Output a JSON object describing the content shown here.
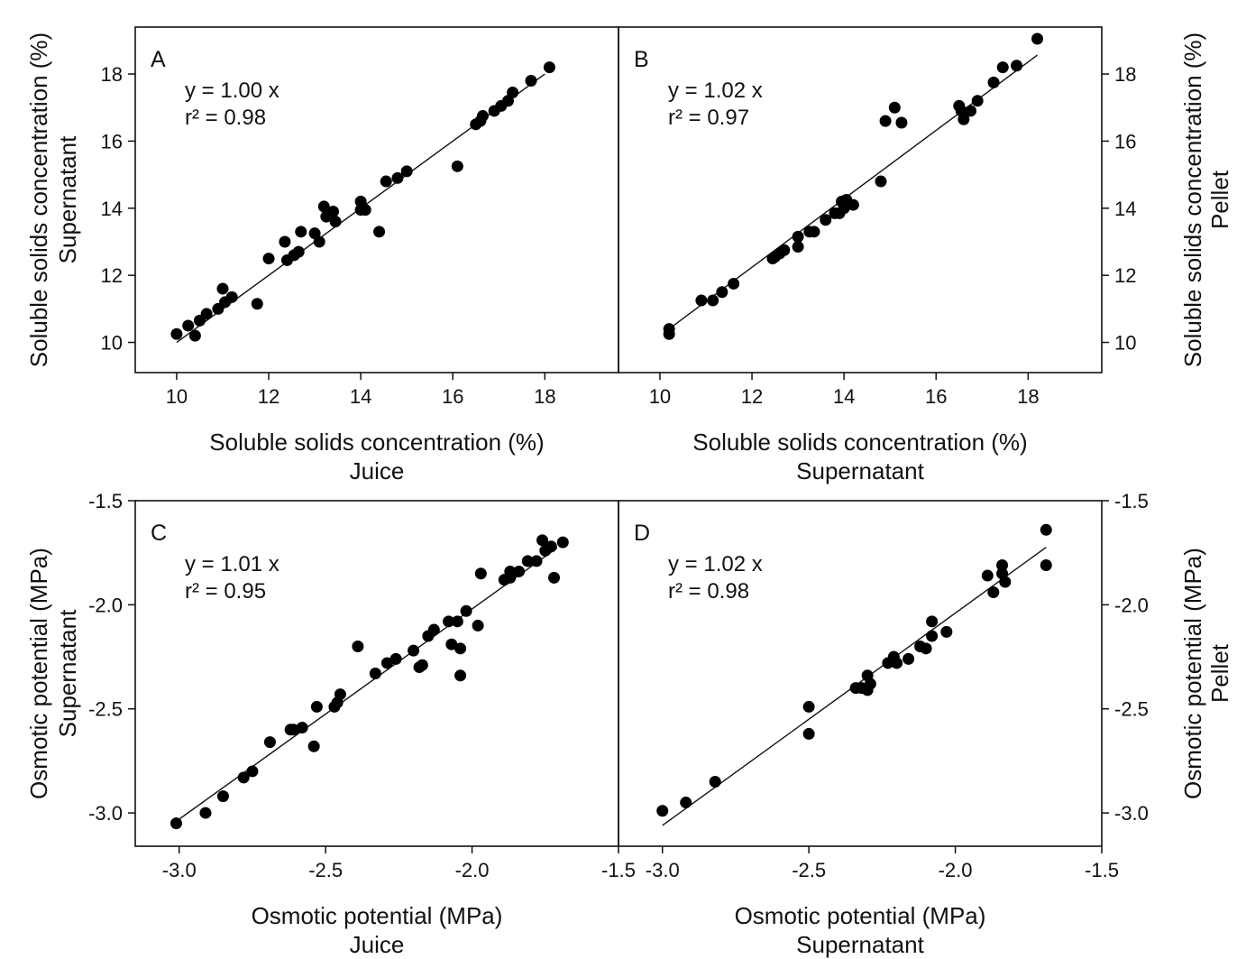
{
  "chart_data": [
    {
      "panel": "A",
      "type": "scatter",
      "letter": "A",
      "equation": "y = 1.00 x",
      "r2": "r² = 0.98",
      "xlabel": [
        "Soluble solids concentration (%)",
        "Juice"
      ],
      "ylabel": [
        "Soluble solids concentration (%)",
        "Supernatant"
      ],
      "xlim": [
        9.1,
        19.6
      ],
      "ylim": [
        9.1,
        19.4
      ],
      "xticks": [
        10,
        12,
        14,
        16,
        18
      ],
      "yticks": [
        10,
        12,
        14,
        16,
        18
      ],
      "tick_labels_x": [
        "10",
        "12",
        "14",
        "16",
        "18"
      ],
      "tick_labels_y": [
        "10",
        "12",
        "14",
        "16",
        "18"
      ],
      "fit": {
        "slope": 1.0,
        "x_range": [
          10.0,
          18.0
        ]
      },
      "points": [
        [
          10.0,
          10.25
        ],
        [
          10.25,
          10.5
        ],
        [
          10.4,
          10.2
        ],
        [
          10.5,
          10.65
        ],
        [
          10.65,
          10.85
        ],
        [
          10.9,
          11.0
        ],
        [
          11.0,
          11.6
        ],
        [
          11.05,
          11.2
        ],
        [
          11.2,
          11.35
        ],
        [
          11.75,
          11.15
        ],
        [
          12.0,
          12.5
        ],
        [
          12.35,
          13.0
        ],
        [
          12.4,
          12.45
        ],
        [
          12.55,
          12.6
        ],
        [
          12.65,
          12.7
        ],
        [
          12.7,
          13.3
        ],
        [
          13.0,
          13.25
        ],
        [
          13.1,
          13.0
        ],
        [
          13.2,
          14.05
        ],
        [
          13.25,
          13.75
        ],
        [
          13.4,
          13.9
        ],
        [
          13.45,
          13.6
        ],
        [
          14.0,
          14.2
        ],
        [
          14.0,
          13.95
        ],
        [
          14.1,
          13.95
        ],
        [
          14.4,
          13.3
        ],
        [
          14.55,
          14.8
        ],
        [
          14.8,
          14.9
        ],
        [
          15.0,
          15.1
        ],
        [
          16.1,
          15.25
        ],
        [
          16.5,
          16.5
        ],
        [
          16.6,
          16.6
        ],
        [
          16.65,
          16.75
        ],
        [
          16.9,
          16.9
        ],
        [
          17.05,
          17.05
        ],
        [
          17.2,
          17.2
        ],
        [
          17.3,
          17.45
        ],
        [
          17.7,
          17.8
        ],
        [
          18.1,
          18.2
        ]
      ]
    },
    {
      "panel": "B",
      "type": "scatter",
      "letter": "B",
      "equation": "y = 1.02 x",
      "r2": "r² = 0.97",
      "xlabel": [
        "Soluble solids concentration (%)",
        "Supernatant"
      ],
      "ylabel": [
        "Soluble solids concentration (%)",
        "Pellet"
      ],
      "xlim": [
        9.1,
        19.6
      ],
      "ylim": [
        9.1,
        19.4
      ],
      "xticks": [
        10,
        12,
        14,
        16,
        18
      ],
      "yticks": [
        10,
        12,
        14,
        16,
        18
      ],
      "tick_labels_x": [
        "10",
        "12",
        "14",
        "16",
        "18"
      ],
      "tick_labels_y": [
        "10",
        "12",
        "14",
        "16",
        "18"
      ],
      "fit": {
        "slope": 1.02,
        "x_range": [
          10.2,
          18.2
        ]
      },
      "points": [
        [
          10.2,
          10.25
        ],
        [
          10.2,
          10.4
        ],
        [
          10.9,
          11.25
        ],
        [
          11.15,
          11.25
        ],
        [
          11.35,
          11.5
        ],
        [
          11.6,
          11.75
        ],
        [
          12.45,
          12.5
        ],
        [
          12.5,
          12.55
        ],
        [
          12.6,
          12.65
        ],
        [
          12.7,
          12.75
        ],
        [
          13.0,
          13.15
        ],
        [
          13.0,
          12.85
        ],
        [
          13.25,
          13.3
        ],
        [
          13.35,
          13.3
        ],
        [
          13.6,
          13.65
        ],
        [
          13.8,
          13.85
        ],
        [
          13.9,
          13.85
        ],
        [
          13.95,
          14.2
        ],
        [
          14.0,
          14.0
        ],
        [
          14.05,
          14.25
        ],
        [
          14.2,
          14.1
        ],
        [
          14.8,
          14.8
        ],
        [
          14.9,
          16.6
        ],
        [
          15.1,
          17.0
        ],
        [
          15.25,
          16.55
        ],
        [
          16.5,
          17.05
        ],
        [
          16.55,
          16.9
        ],
        [
          16.6,
          16.65
        ],
        [
          16.75,
          16.9
        ],
        [
          16.9,
          17.2
        ],
        [
          17.25,
          17.75
        ],
        [
          17.45,
          18.2
        ],
        [
          17.75,
          18.25
        ],
        [
          18.2,
          19.05
        ]
      ]
    },
    {
      "panel": "C",
      "type": "scatter",
      "letter": "C",
      "equation": "y = 1.01 x",
      "r2": "r² = 0.95",
      "xlabel": [
        "Osmotic potential (MPa)",
        "Juice"
      ],
      "ylabel": [
        "Osmotic potential (MPa)",
        "Supernatant"
      ],
      "xlim": [
        -3.15,
        -1.5
      ],
      "ylim": [
        -3.16,
        -1.5
      ],
      "xticks": [
        -3.0,
        -2.5,
        -2.0,
        -1.5
      ],
      "yticks": [
        -3.0,
        -2.5,
        -2.0,
        -1.5
      ],
      "tick_labels_x": [
        "-3.0",
        "-2.5",
        "-2.0",
        "-1.5"
      ],
      "tick_labels_y": [
        "-3.0",
        "-2.5",
        "-2.0",
        "-1.5"
      ],
      "fit": {
        "slope": 1.01,
        "x_range": [
          -3.0,
          -1.71
        ]
      },
      "points": [
        [
          -3.01,
          -3.05
        ],
        [
          -2.91,
          -3.0
        ],
        [
          -2.85,
          -2.92
        ],
        [
          -2.78,
          -2.83
        ],
        [
          -2.75,
          -2.8
        ],
        [
          -2.69,
          -2.66
        ],
        [
          -2.62,
          -2.6
        ],
        [
          -2.61,
          -2.6
        ],
        [
          -2.58,
          -2.59
        ],
        [
          -2.54,
          -2.68
        ],
        [
          -2.53,
          -2.49
        ],
        [
          -2.47,
          -2.49
        ],
        [
          -2.46,
          -2.47
        ],
        [
          -2.45,
          -2.43
        ],
        [
          -2.39,
          -2.2
        ],
        [
          -2.33,
          -2.33
        ],
        [
          -2.29,
          -2.28
        ],
        [
          -2.26,
          -2.26
        ],
        [
          -2.2,
          -2.22
        ],
        [
          -2.18,
          -2.3
        ],
        [
          -2.17,
          -2.29
        ],
        [
          -2.15,
          -2.15
        ],
        [
          -2.13,
          -2.12
        ],
        [
          -2.08,
          -2.08
        ],
        [
          -2.07,
          -2.19
        ],
        [
          -2.05,
          -2.08
        ],
        [
          -2.04,
          -2.21
        ],
        [
          -2.04,
          -2.34
        ],
        [
          -2.02,
          -2.03
        ],
        [
          -1.98,
          -2.1
        ],
        [
          -1.97,
          -1.85
        ],
        [
          -1.89,
          -1.88
        ],
        [
          -1.87,
          -1.87
        ],
        [
          -1.87,
          -1.84
        ],
        [
          -1.84,
          -1.84
        ],
        [
          -1.81,
          -1.79
        ],
        [
          -1.78,
          -1.79
        ],
        [
          -1.76,
          -1.69
        ],
        [
          -1.75,
          -1.74
        ],
        [
          -1.73,
          -1.72
        ],
        [
          -1.72,
          -1.87
        ],
        [
          -1.69,
          -1.7
        ]
      ]
    },
    {
      "panel": "D",
      "type": "scatter",
      "letter": "D",
      "equation": "y = 1.02 x",
      "r2": "r² = 0.98",
      "xlabel": [
        "Osmotic potential (MPa)",
        "Supernatant"
      ],
      "ylabel": [
        "Osmotic potential (MPa)",
        "Pellet"
      ],
      "xlim": [
        -3.15,
        -1.5
      ],
      "ylim": [
        -3.16,
        -1.5
      ],
      "xticks": [
        -3.0,
        -2.5,
        -2.0,
        -1.5
      ],
      "yticks": [
        -3.0,
        -2.5,
        -2.0,
        -1.5
      ],
      "tick_labels_x": [
        "-3.0",
        "-2.5",
        "-2.0",
        "-1.5"
      ],
      "tick_labels_y": [
        "-3.0",
        "-2.5",
        "-2.0",
        "-1.5"
      ],
      "fit": {
        "slope": 1.02,
        "x_range": [
          -3.0,
          -1.69
        ]
      },
      "points": [
        [
          -3.0,
          -2.99
        ],
        [
          -2.92,
          -2.95
        ],
        [
          -2.82,
          -2.85
        ],
        [
          -2.5,
          -2.49
        ],
        [
          -2.5,
          -2.62
        ],
        [
          -2.34,
          -2.4
        ],
        [
          -2.32,
          -2.4
        ],
        [
          -2.3,
          -2.34
        ],
        [
          -2.3,
          -2.41
        ],
        [
          -2.29,
          -2.38
        ],
        [
          -2.23,
          -2.28
        ],
        [
          -2.21,
          -2.25
        ],
        [
          -2.2,
          -2.28
        ],
        [
          -2.16,
          -2.26
        ],
        [
          -2.12,
          -2.2
        ],
        [
          -2.1,
          -2.21
        ],
        [
          -2.08,
          -2.15
        ],
        [
          -2.08,
          -2.08
        ],
        [
          -2.03,
          -2.13
        ],
        [
          -1.89,
          -1.86
        ],
        [
          -1.87,
          -1.94
        ],
        [
          -1.84,
          -1.81
        ],
        [
          -1.84,
          -1.85
        ],
        [
          -1.83,
          -1.89
        ],
        [
          -1.69,
          -1.64
        ],
        [
          -1.69,
          -1.81
        ]
      ]
    }
  ]
}
